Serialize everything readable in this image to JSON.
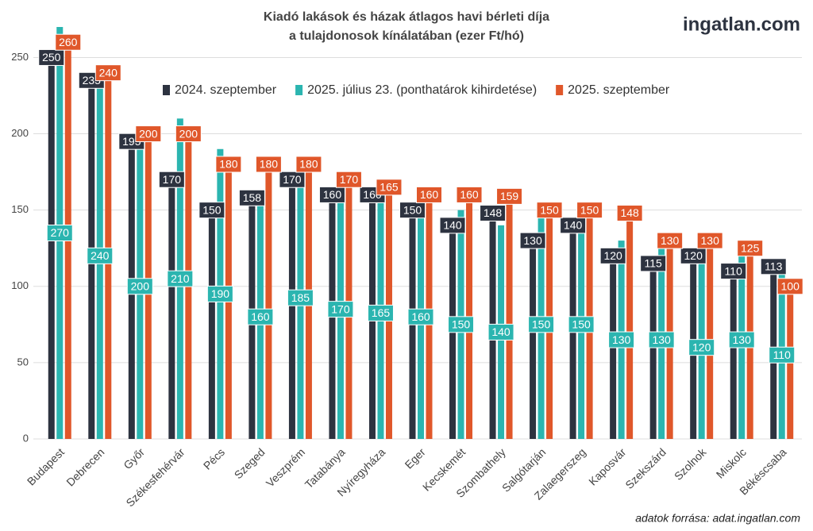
{
  "chart_data": {
    "type": "bar",
    "title": [
      "Kiadó lakások és házak átlagos havi bérleti díja",
      "a tulajdonosok kínálatában (ezer Ft/hó)"
    ],
    "logo": "ingatlan.com",
    "source": "adatok forrása: adat.ingatlan.com",
    "categories": [
      "Budapest",
      "Debrecen",
      "Győr",
      "Székesfehérvár",
      "Pécs",
      "Szeged",
      "Veszprém",
      "Tatabánya",
      "Nyíregyháza",
      "Eger",
      "Kecskemét",
      "Szombathely",
      "Salgótarján",
      "Zalaegerszeg",
      "Kaposvár",
      "Szekszárd",
      "Szolnok",
      "Miskolc",
      "Békéscsaba"
    ],
    "series": [
      {
        "name": "2024. szeptember",
        "color": "#2d3340",
        "values": [
          250,
          235,
          195,
          170,
          150,
          158,
          170,
          160,
          160,
          150,
          140,
          148,
          130,
          140,
          120,
          115,
          120,
          110,
          113
        ]
      },
      {
        "name": "2025. július 23. (ponthatárok kihirdetése)",
        "color": "#2bb5b0",
        "values": [
          270,
          240,
          200,
          210,
          190,
          160,
          185,
          170,
          165,
          160,
          150,
          140,
          150,
          150,
          130,
          130,
          120,
          130,
          110
        ]
      },
      {
        "name": "2025. szeptember",
        "color": "#e0572a",
        "values": [
          260,
          240,
          200,
          200,
          180,
          180,
          180,
          170,
          165,
          160,
          160,
          159,
          150,
          150,
          148,
          130,
          130,
          125,
          100
        ]
      }
    ],
    "ylim": [
      0,
      270
    ],
    "yticks": [
      0,
      50,
      100,
      150,
      200,
      250
    ],
    "grid": true
  }
}
